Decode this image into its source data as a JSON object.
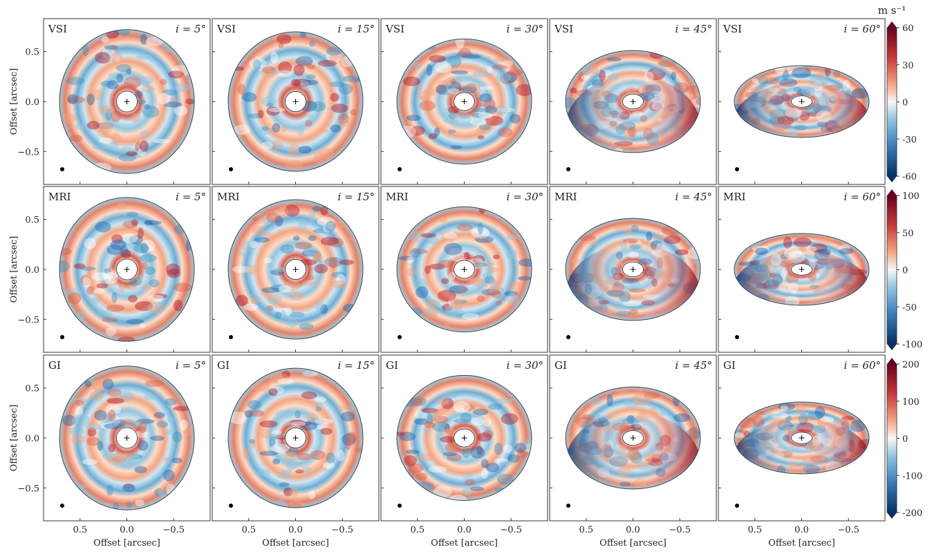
{
  "chart_data": {
    "type": "image-grid",
    "xlabel": "Offset [arcsec]",
    "ylabel": "Offset [arcsec]",
    "colorbar_label": "m s⁻¹",
    "xlim": [
      0.89,
      -0.89
    ],
    "ylim": [
      -0.83,
      0.83
    ],
    "xticks": [
      0.5,
      {
        "value": 0,
        "label": "0.0"
      },
      {
        "value": -0.5,
        "label": "−0.5"
      }
    ],
    "yticks": [
      0.5,
      {
        "value": 0,
        "label": "0.0"
      },
      {
        "value": -0.5,
        "label": "−0.5"
      }
    ],
    "rows": [
      {
        "model": "VSI",
        "clim": [
          -60,
          60
        ],
        "cticks": [
          60,
          30,
          0,
          -30,
          -60
        ],
        "panels": [
          "i = 5°",
          "i = 15°",
          "i = 30°",
          "i = 45°",
          "i = 60°"
        ]
      },
      {
        "model": "MRI",
        "clim": [
          -100,
          100
        ],
        "cticks": [
          100,
          50,
          0,
          -50,
          -100
        ],
        "panels": [
          "i = 5°",
          "i = 15°",
          "i = 30°",
          "i = 45°",
          "i = 60°"
        ]
      },
      {
        "model": "GI",
        "clim": [
          -200,
          200
        ],
        "cticks": [
          200,
          100,
          0,
          -100,
          -200
        ],
        "panels": [
          "i = 5°",
          "i = 15°",
          "i = 30°",
          "i = 45°",
          "i = 60°"
        ]
      }
    ]
  }
}
